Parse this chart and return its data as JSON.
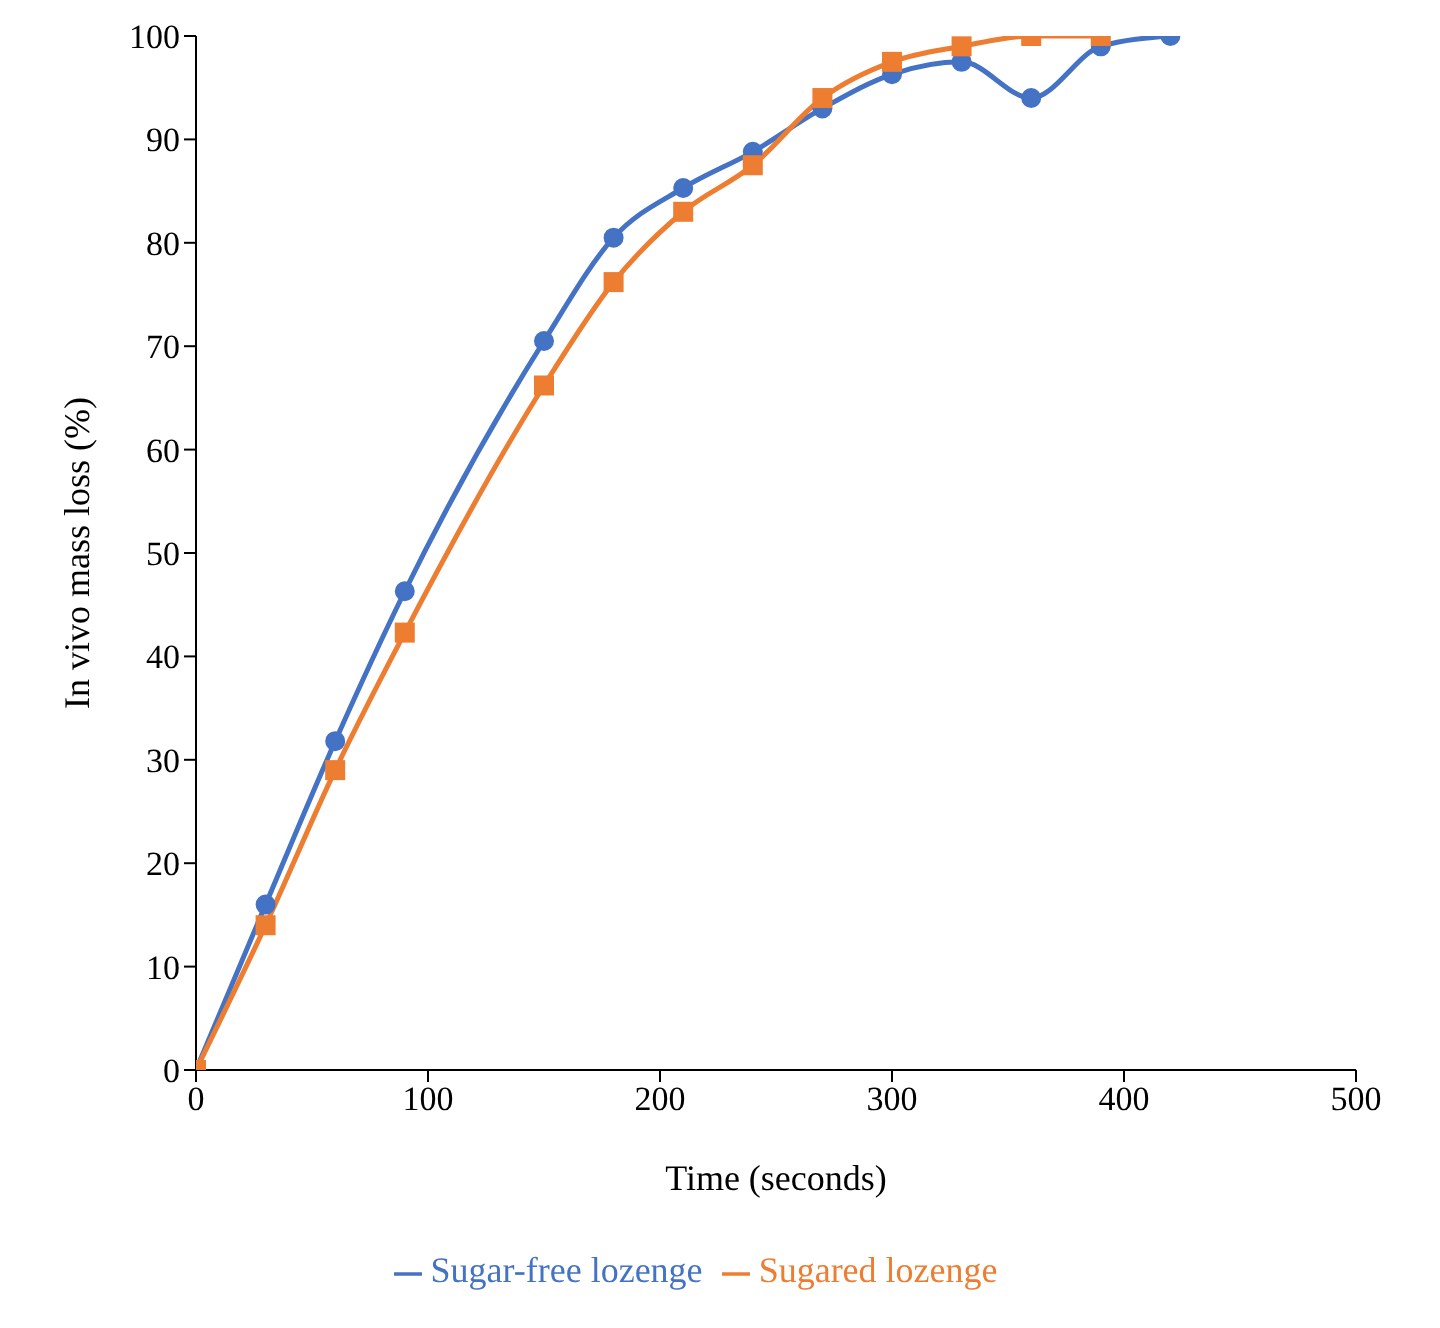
{
  "chart_data": {
    "type": "line",
    "xlabel": "Time (seconds)",
    "ylabel": "In vivo mass loss (%)",
    "xlim": [
      0,
      500
    ],
    "xticks": [
      0,
      100,
      200,
      300,
      400,
      500
    ],
    "ylim": [
      0,
      100
    ],
    "yticks": [
      0,
      10,
      20,
      30,
      40,
      50,
      60,
      70,
      80,
      90,
      100
    ],
    "grid": false,
    "legend": "bottom",
    "series": [
      {
        "name": "Sugar-free lozenge",
        "color": "#4472c4",
        "marker": "circle",
        "x": [
          0,
          30,
          60,
          90,
          150,
          180,
          210,
          240,
          270,
          300,
          330,
          360,
          390,
          420
        ],
        "values": [
          0,
          16,
          31.8,
          46.3,
          70.5,
          80.5,
          85.3,
          88.8,
          93,
          96.3,
          97.5,
          94,
          99,
          100
        ]
      },
      {
        "name": "Sugared lozenge",
        "color": "#ed7d31",
        "marker": "square",
        "x": [
          0,
          30,
          60,
          90,
          150,
          180,
          210,
          240,
          270,
          300,
          330,
          360,
          390
        ],
        "values": [
          0,
          14,
          29,
          42.3,
          66.2,
          76.2,
          83,
          87.5,
          94,
          97.5,
          99,
          100,
          100
        ]
      }
    ]
  }
}
